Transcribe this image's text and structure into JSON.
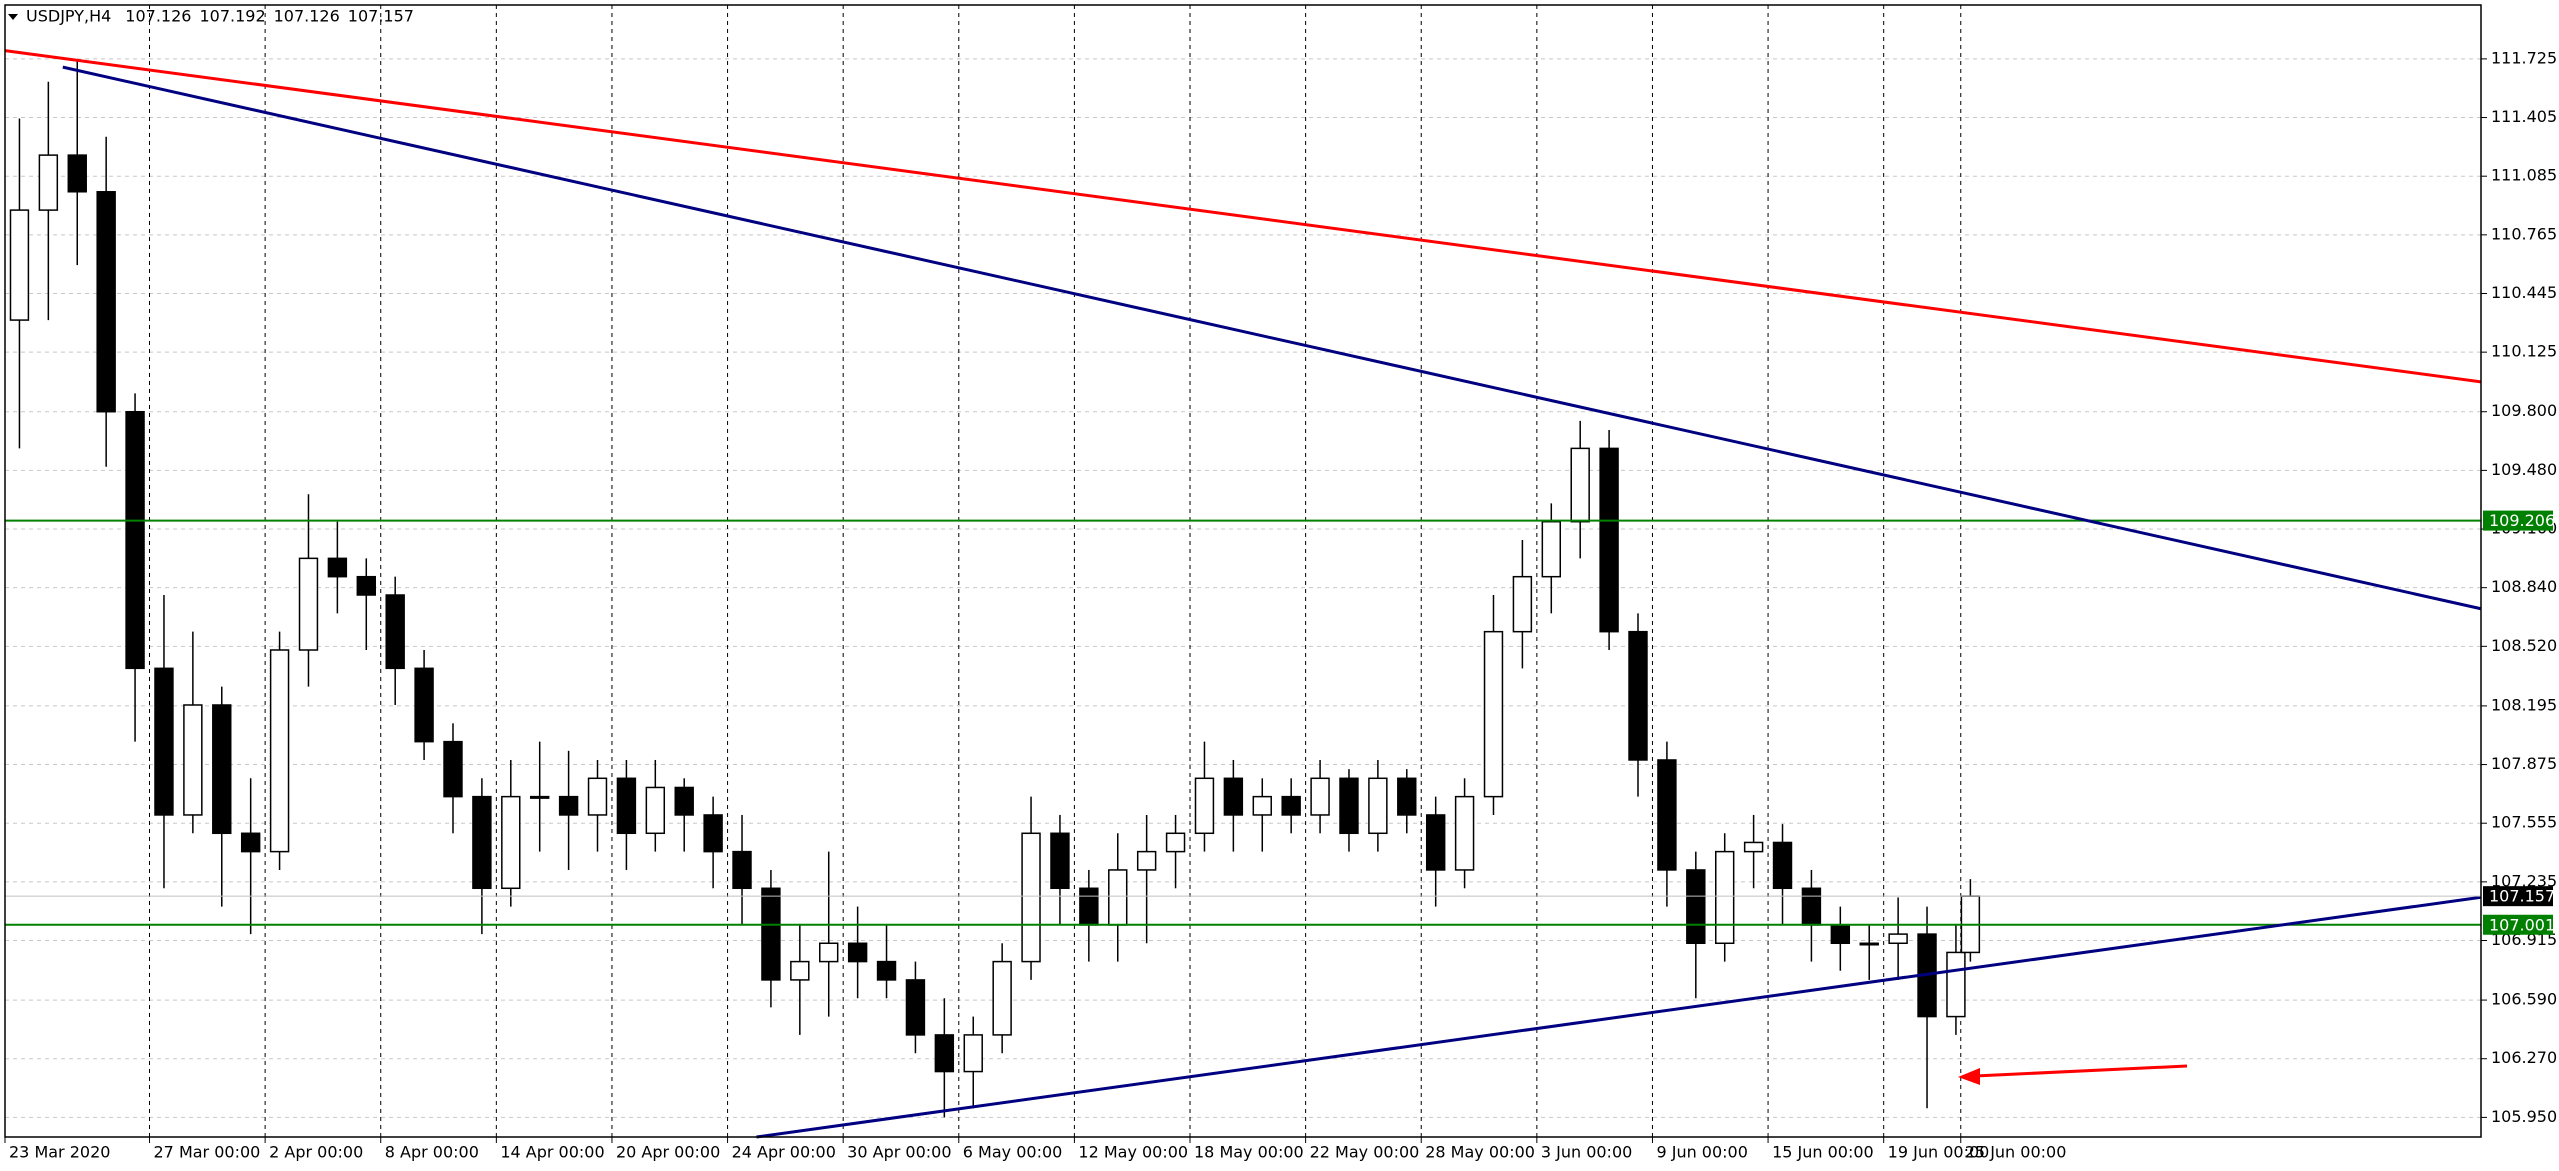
{
  "chart_data": {
    "type": "candlestick",
    "symbol": "USDJPY,H4",
    "ohlc": [
      107.126,
      107.192,
      107.126,
      107.157
    ],
    "xlim": [
      0,
      514
    ],
    "ylim": [
      105.843,
      112.019
    ],
    "xticks": [
      {
        "value": 0,
        "label": "23 Mar 2020"
      },
      {
        "value": 30,
        "label": "27 Mar 00:00"
      },
      {
        "value": 54,
        "label": "2 Apr 00:00"
      },
      {
        "value": 78,
        "label": "8 Apr 00:00"
      },
      {
        "value": 102,
        "label": "14 Apr 00:00"
      },
      {
        "value": 126,
        "label": "20 Apr 00:00"
      },
      {
        "value": 150,
        "label": "24 Apr 00:00"
      },
      {
        "value": 174,
        "label": "30 Apr 00:00"
      },
      {
        "value": 198,
        "label": "6 May 00:00"
      },
      {
        "value": 222,
        "label": "12 May 00:00"
      },
      {
        "value": 246,
        "label": "18 May 00:00"
      },
      {
        "value": 270,
        "label": "22 May 00:00"
      },
      {
        "value": 294,
        "label": "28 May 00:00"
      },
      {
        "value": 318,
        "label": "3 Jun 00:00"
      },
      {
        "value": 342,
        "label": "9 Jun 00:00"
      },
      {
        "value": 366,
        "label": "15 Jun 00:00"
      },
      {
        "value": 390,
        "label": "19 Jun 00:00"
      },
      {
        "value": 406,
        "label": "25 Jun 00:00"
      }
    ],
    "yticks": [
      111.725,
      111.405,
      111.085,
      110.765,
      110.445,
      110.125,
      {
        "value": 109.8,
        "label": "109.800"
      },
      {
        "value": 109.48,
        "label": "109.480"
      },
      {
        "value": 109.16,
        "label": "109.160"
      },
      {
        "value": 108.84,
        "label": "108.840"
      },
      {
        "value": 108.52,
        "label": "108.520"
      },
      108.195,
      107.875,
      107.555,
      107.235,
      106.915,
      {
        "value": 106.59,
        "label": "106.590"
      },
      {
        "value": 106.27,
        "label": "106.270"
      },
      {
        "value": 105.95,
        "label": "105.950"
      }
    ],
    "grid": true,
    "x": [
      3,
      9,
      15,
      21,
      27,
      33,
      39,
      45,
      51,
      57,
      63,
      69,
      75,
      81,
      87,
      93,
      99,
      105,
      111,
      117,
      123,
      129,
      135,
      141,
      147,
      153,
      159,
      165,
      171,
      177,
      183,
      189,
      195,
      201,
      207,
      213,
      219,
      225,
      231,
      237,
      243,
      249,
      255,
      261,
      267,
      273,
      279,
      285,
      291,
      297,
      303,
      309,
      315,
      321,
      327,
      333,
      339,
      345,
      351,
      357,
      363,
      369,
      375,
      381,
      387,
      393,
      399,
      405,
      408
    ],
    "open": [
      110.3,
      110.9,
      111.2,
      111.0,
      109.8,
      108.4,
      107.6,
      108.2,
      107.5,
      107.4,
      108.5,
      109.0,
      108.9,
      108.8,
      108.4,
      108.0,
      107.7,
      107.2,
      107.7,
      107.7,
      107.6,
      107.8,
      107.5,
      107.75,
      107.6,
      107.4,
      107.2,
      106.7,
      106.8,
      106.9,
      106.8,
      106.7,
      106.4,
      106.2,
      106.4,
      106.8,
      107.5,
      107.2,
      107.0,
      107.3,
      107.4,
      107.5,
      107.8,
      107.6,
      107.7,
      107.6,
      107.8,
      107.5,
      107.8,
      107.6,
      107.3,
      107.7,
      108.6,
      108.9,
      109.2,
      109.6,
      108.6,
      107.9,
      107.3,
      106.9,
      107.4,
      107.45,
      107.2,
      107.0,
      106.9,
      106.9,
      106.95,
      106.5,
      106.85
    ],
    "high": [
      111.4,
      111.6,
      111.72,
      111.3,
      109.9,
      108.8,
      108.6,
      108.3,
      107.8,
      108.6,
      109.35,
      109.2,
      109.0,
      108.9,
      108.5,
      108.1,
      107.8,
      107.9,
      108.0,
      107.95,
      107.9,
      107.9,
      107.9,
      107.8,
      107.7,
      107.6,
      107.3,
      107.0,
      107.4,
      107.1,
      107.0,
      106.8,
      106.6,
      106.5,
      106.9,
      107.7,
      107.6,
      107.3,
      107.5,
      107.6,
      107.6,
      108.0,
      107.9,
      107.8,
      107.8,
      107.9,
      107.85,
      107.9,
      107.85,
      107.7,
      107.8,
      108.8,
      109.1,
      109.3,
      109.75,
      109.7,
      108.7,
      108.0,
      107.4,
      107.5,
      107.6,
      107.55,
      107.3,
      107.1,
      107.0,
      107.15,
      107.1,
      107.0,
      107.25
    ],
    "low": [
      109.6,
      110.3,
      110.6,
      109.5,
      108.0,
      107.2,
      107.5,
      107.1,
      106.95,
      107.3,
      108.3,
      108.7,
      108.5,
      108.2,
      107.9,
      107.5,
      106.95,
      107.1,
      107.4,
      107.3,
      107.4,
      107.3,
      107.4,
      107.4,
      107.2,
      107.0,
      106.55,
      106.4,
      106.5,
      106.6,
      106.6,
      106.3,
      105.95,
      106.0,
      106.3,
      106.7,
      107.0,
      106.8,
      106.8,
      106.9,
      107.2,
      107.4,
      107.4,
      107.4,
      107.5,
      107.5,
      107.4,
      107.4,
      107.5,
      107.1,
      107.2,
      107.6,
      108.4,
      108.7,
      109.0,
      108.5,
      107.7,
      107.1,
      106.6,
      106.8,
      107.2,
      107.0,
      106.8,
      106.75,
      106.7,
      106.7,
      106.0,
      106.4,
      106.8
    ],
    "close": [
      110.9,
      111.2,
      111.0,
      109.8,
      108.4,
      107.6,
      108.2,
      107.5,
      107.4,
      108.5,
      109.0,
      108.9,
      108.8,
      108.4,
      108.0,
      107.7,
      107.2,
      107.7,
      107.7,
      107.6,
      107.8,
      107.5,
      107.75,
      107.6,
      107.4,
      107.2,
      106.7,
      106.8,
      106.9,
      106.8,
      106.7,
      106.4,
      106.2,
      106.4,
      106.8,
      107.5,
      107.2,
      107.0,
      107.3,
      107.4,
      107.5,
      107.8,
      107.6,
      107.7,
      107.6,
      107.8,
      107.5,
      107.8,
      107.6,
      107.3,
      107.7,
      108.6,
      108.9,
      109.2,
      109.6,
      108.6,
      107.9,
      107.3,
      106.9,
      107.4,
      107.45,
      107.2,
      107.0,
      106.9,
      106.9,
      106.95,
      106.5,
      106.85,
      107.157
    ],
    "trendlines": [
      {
        "color": "#ff0000",
        "x": [
          0,
          514
        ],
        "y": [
          111.77,
          109.963
        ]
      },
      {
        "color": "#000080",
        "x": [
          12,
          514
        ],
        "y": [
          111.68,
          108.725
        ]
      },
      {
        "color": "#000080",
        "x": [
          156,
          514
        ],
        "y": [
          105.843,
          107.151
        ]
      }
    ],
    "levels": [
      {
        "value": 109.206,
        "color": "#008000"
      },
      {
        "value": 107.001,
        "color": "#008000"
      }
    ],
    "last_price": 107.157
  }
}
